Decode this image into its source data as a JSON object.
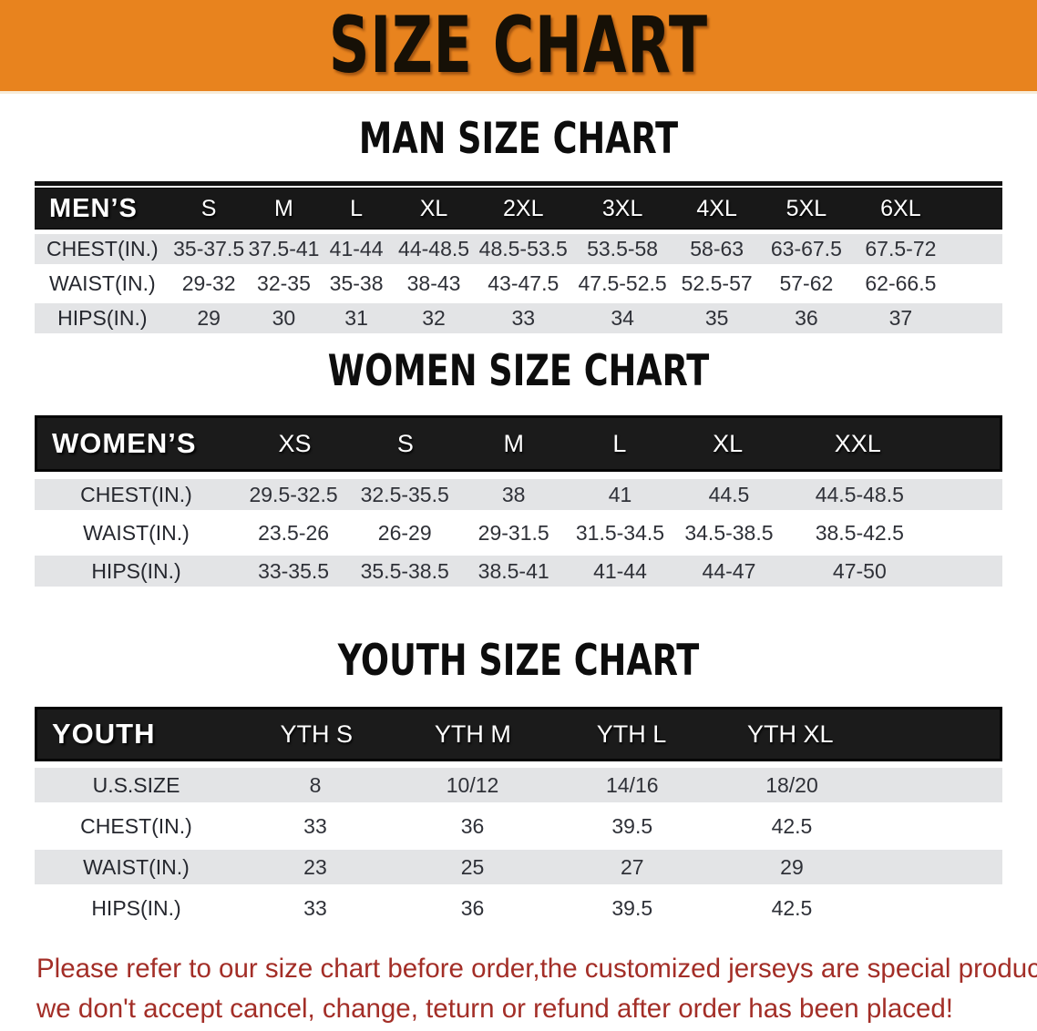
{
  "banner": {
    "title": "SIZE CHART",
    "bg_color": "#E8831E",
    "text_color": "#161006"
  },
  "colors": {
    "stripe_gray": "#E3E4E6",
    "header_black": "#181818",
    "disclaimer_red": "#A32E27"
  },
  "men": {
    "heading": "MAN SIZE CHART",
    "corner_label": "MEN’S",
    "sizes": [
      "S",
      "M",
      "L",
      "XL",
      "2XL",
      "3XL",
      "4XL",
      "5XL",
      "6XL"
    ],
    "rows": [
      {
        "label": "CHEST(IN.)",
        "values": [
          "35-37.5",
          "37.5-41",
          "41-44",
          "44-48.5",
          "48.5-53.5",
          "53.5-58",
          "58-63",
          "63-67.5",
          "67.5-72"
        ]
      },
      {
        "label": "WAIST(IN.)",
        "values": [
          "29-32",
          "32-35",
          "35-38",
          "38-43",
          "43-47.5",
          "47.5-52.5",
          "52.5-57",
          "57-62",
          "62-66.5"
        ]
      },
      {
        "label": "HIPS(IN.)",
        "values": [
          "29",
          "30",
          "31",
          "32",
          "33",
          "34",
          "35",
          "36",
          "37"
        ]
      }
    ]
  },
  "women": {
    "heading": "WOMEN SIZE CHART",
    "corner_label": "WOMEN’S",
    "sizes": [
      "XS",
      "S",
      "M",
      "L",
      "XL",
      "XXL"
    ],
    "rows": [
      {
        "label": "CHEST(IN.)",
        "values": [
          "29.5-32.5",
          "32.5-35.5",
          "38",
          "41",
          "44.5",
          "44.5-48.5"
        ]
      },
      {
        "label": "WAIST(IN.)",
        "values": [
          "23.5-26",
          "26-29",
          "29-31.5",
          "31.5-34.5",
          "34.5-38.5",
          "38.5-42.5"
        ]
      },
      {
        "label": "HIPS(IN.)",
        "values": [
          "33-35.5",
          "35.5-38.5",
          "38.5-41",
          "41-44",
          "44-47",
          "47-50"
        ]
      }
    ]
  },
  "youth": {
    "heading": "YOUTH SIZE CHART",
    "corner_label": "YOUTH",
    "sizes": [
      "YTH S",
      "YTH M",
      "YTH L",
      "YTH XL"
    ],
    "rows": [
      {
        "label": "U.S.SIZE",
        "values": [
          "8",
          "10/12",
          "14/16",
          "18/20"
        ]
      },
      {
        "label": "CHEST(IN.)",
        "values": [
          "33",
          "36",
          "39.5",
          "42.5"
        ]
      },
      {
        "label": "WAIST(IN.)",
        "values": [
          "23",
          "25",
          "27",
          "29"
        ]
      },
      {
        "label": "HIPS(IN.)",
        "values": [
          "33",
          "36",
          "39.5",
          "42.5"
        ]
      }
    ]
  },
  "disclaimer": {
    "line1": "Please refer to our size chart before order,the customized jerseys are special products,",
    "line2": "we don't accept cancel, change, teturn or refund after order has been placed!"
  }
}
